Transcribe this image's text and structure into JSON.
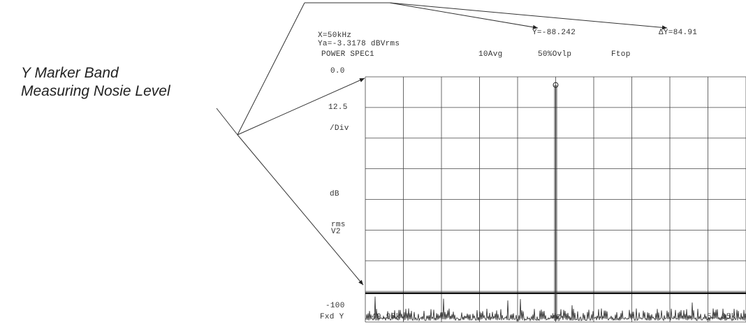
{
  "callout": {
    "line1": "Y Marker Band",
    "line2": "Measuring Nosie Level"
  },
  "header": {
    "x_marker": "X=50kHz",
    "ya_value": "Ya=-3.3178  dBVrms",
    "trace_name": "POWER SPEC1",
    "averages": "10Avg",
    "overlap": "50%Ovlp",
    "window": "Ftop",
    "y_marker": "Y=-88.242",
    "delta_y": "ΔY=84.91"
  },
  "axis": {
    "top_ref": "0.0",
    "scale_value": "12.5",
    "scale_unit": "/Div",
    "unit_db": "dB",
    "unit_rms": "rms",
    "unit_v2": "V2",
    "bottom_ref": "-100",
    "fxd_y": "Fxd Y",
    "x_start": "49.95k",
    "x_unit": "Hz",
    "x_end": "50.05k"
  },
  "chart_data": {
    "type": "line",
    "x": [
      49950,
      49960,
      49970,
      49980,
      49990,
      50000,
      50010,
      50020,
      50030,
      50040,
      50050
    ],
    "series": [
      {
        "values": [
          -90,
          -88,
          -91,
          -89,
          -90,
          -3.3178,
          -90,
          -89,
          -91,
          -88,
          -90
        ]
      }
    ],
    "xlim": [
      49950,
      50050
    ],
    "ylim": [
      -100,
      0
    ],
    "y_per_div": 12.5,
    "grid": true,
    "marker_x": 50000,
    "marker_y": -3.3178,
    "y_marker_band": -88.242,
    "delta_y": 84.91,
    "noise_floor": -88.242
  }
}
